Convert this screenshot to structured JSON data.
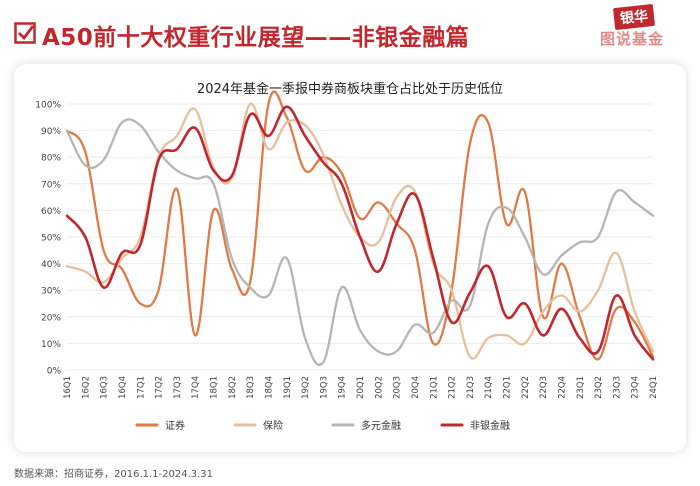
{
  "header": {
    "title": "A50前十大权重行业展望——非银金融篇",
    "logo_line1": "银华",
    "logo_line2": "图说基金"
  },
  "footer": {
    "source": "数据来源：招商证券，2016.1.1-2024.3.31"
  },
  "colors": {
    "accent": "#c1272d",
    "证券": "#e07b45",
    "保险": "#e8bf9c",
    "多元金融": "#b5b5b5",
    "非银金融": "#c1272d"
  },
  "chart_data": {
    "type": "line",
    "title": "2024年基金一季报中券商板块重仓占比处于历史低位",
    "categories": [
      "16Q1",
      "16Q2",
      "16Q3",
      "16Q4",
      "17Q1",
      "17Q2",
      "17Q3",
      "17Q4",
      "18Q1",
      "18Q2",
      "18Q3",
      "18Q4",
      "19Q1",
      "19Q2",
      "19Q3",
      "19Q4",
      "20Q1",
      "20Q2",
      "20Q3",
      "20Q4",
      "21Q1",
      "21Q2",
      "21Q3",
      "21Q4",
      "22Q1",
      "22Q2",
      "22Q3",
      "22Q4",
      "23Q1",
      "23Q2",
      "23Q3",
      "23Q4",
      "24Q1"
    ],
    "ylim": [
      0,
      100
    ],
    "yticks": [
      "0%",
      "10%",
      "20%",
      "30%",
      "40%",
      "50%",
      "60%",
      "70%",
      "80%",
      "90%",
      "100%"
    ],
    "legend_position": "bottom",
    "series": [
      {
        "name": "证券",
        "color": "#e07b45",
        "values": [
          90,
          82,
          45,
          38,
          25,
          30,
          68,
          13,
          60,
          38,
          33,
          100,
          95,
          75,
          80,
          74,
          57,
          63,
          55,
          45,
          10,
          30,
          85,
          93,
          55,
          67,
          20,
          40,
          20,
          4,
          23,
          18,
          5
        ]
      },
      {
        "name": "保险",
        "color": "#e8bf9c",
        "values": [
          39,
          37,
          33,
          42,
          50,
          80,
          88,
          98,
          76,
          72,
          100,
          83,
          93,
          92,
          81,
          62,
          50,
          48,
          65,
          67,
          40,
          30,
          5,
          12,
          13,
          10,
          22,
          28,
          22,
          30,
          44,
          22,
          7
        ]
      },
      {
        "name": "多元金融",
        "color": "#b5b5b5",
        "values": [
          90,
          77,
          79,
          93,
          92,
          82,
          75,
          72,
          70,
          42,
          31,
          28,
          42,
          12,
          3,
          31,
          15,
          7,
          7,
          17,
          14,
          26,
          24,
          55,
          61,
          50,
          36,
          43,
          48,
          50,
          67,
          63,
          58
        ]
      },
      {
        "name": "非银金融",
        "color": "#c1272d",
        "values": [
          58,
          50,
          31,
          44,
          47,
          79,
          83,
          91,
          75,
          73,
          96,
          88,
          99,
          88,
          78,
          70,
          50,
          37,
          55,
          66,
          42,
          18,
          29,
          39,
          20,
          25,
          13,
          23,
          12,
          7,
          28,
          13,
          4
        ]
      }
    ]
  }
}
